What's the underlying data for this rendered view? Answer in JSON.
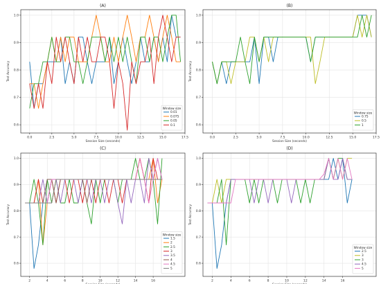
{
  "chart_data": [
    {
      "type": "line",
      "title": "(A)",
      "xlabel": "Session Size (seconds)",
      "ylabel": "Test Accuracy",
      "xlim": [
        -1,
        17.5
      ],
      "ylim": [
        0.57,
        1.02
      ],
      "xticks": [
        0.0,
        2.5,
        5.0,
        7.5,
        10.0,
        12.5,
        15.0,
        17.5
      ],
      "xtick_labels": [
        "0.0",
        "2.5",
        "5.0",
        "7.5",
        "10.0",
        "12.5",
        "15.0",
        "17.5"
      ],
      "yticks": [
        0.6,
        0.7,
        0.8,
        0.9,
        1.0
      ],
      "ytick_labels": [
        "0.6",
        "0.7",
        "0.8",
        "0.9",
        "1.0"
      ],
      "grid": true,
      "legend": {
        "title": "Window size",
        "position": "lower-right"
      },
      "x": [
        0.0,
        0.5,
        1.0,
        1.5,
        2.0,
        2.5,
        3.0,
        3.5,
        4.0,
        4.5,
        5.0,
        5.5,
        6.0,
        6.5,
        7.0,
        7.5,
        8.0,
        8.5,
        9.0,
        9.5,
        10.0,
        10.5,
        11.0,
        11.5,
        12.0,
        12.5,
        13.0,
        13.5,
        14.0,
        14.5,
        15.0,
        15.5,
        16.0,
        16.5,
        17.0
      ],
      "series": [
        {
          "name": "0.01",
          "color": "#1f77b4",
          "values": [
            0.83,
            0.66,
            0.75,
            0.75,
            0.83,
            0.83,
            0.83,
            0.92,
            0.75,
            0.83,
            0.75,
            0.92,
            0.92,
            0.83,
            0.75,
            0.83,
            0.83,
            0.83,
            0.92,
            0.75,
            0.83,
            0.92,
            0.83,
            0.75,
            0.83,
            0.92,
            0.83,
            0.83,
            0.92,
            0.83,
            0.92,
            0.83,
            1.0,
            0.92,
            0.92
          ]
        },
        {
          "name": "0.075",
          "color": "#ff7f0e",
          "values": [
            0.75,
            0.75,
            0.66,
            0.75,
            0.83,
            0.92,
            0.83,
            0.92,
            0.83,
            0.92,
            0.92,
            0.83,
            0.83,
            0.83,
            0.92,
            1.0,
            0.92,
            0.83,
            0.83,
            0.92,
            0.83,
            0.92,
            1.0,
            0.92,
            0.83,
            0.92,
            0.92,
            1.0,
            0.92,
            0.83,
            0.92,
            1.0,
            0.92,
            0.83,
            0.83
          ]
        },
        {
          "name": "0.05",
          "color": "#2ca02c",
          "values": [
            0.66,
            0.75,
            0.75,
            0.83,
            0.83,
            0.92,
            0.83,
            0.83,
            0.92,
            0.92,
            0.83,
            0.83,
            0.75,
            0.83,
            0.92,
            0.92,
            0.92,
            0.83,
            0.92,
            0.83,
            0.92,
            0.83,
            0.92,
            0.83,
            0.75,
            0.92,
            0.92,
            0.83,
            0.92,
            0.92,
            0.83,
            0.92,
            1.0,
            1.0,
            0.83
          ]
        },
        {
          "name": "0.1",
          "color": "#d62728",
          "values": [
            0.75,
            0.66,
            0.75,
            0.66,
            0.83,
            0.75,
            0.92,
            0.83,
            0.92,
            0.83,
            0.75,
            0.92,
            0.83,
            0.92,
            0.83,
            0.83,
            0.92,
            0.92,
            0.83,
            0.66,
            0.83,
            0.75,
            0.58,
            0.83,
            0.75,
            0.83,
            0.83,
            0.92,
            0.75,
            0.92,
            1.0,
            0.92,
            0.83,
            0.92,
            0.92
          ]
        }
      ]
    },
    {
      "type": "line",
      "title": "(B)",
      "xlabel": "Session Size (seconds)",
      "ylabel": "Test Accuracy",
      "xlim": [
        -1,
        17.5
      ],
      "ylim": [
        0.57,
        1.02
      ],
      "xticks": [
        0.0,
        2.5,
        5.0,
        7.5,
        10.0,
        12.5,
        15.0,
        17.5
      ],
      "xtick_labels": [
        "0.0",
        "2.5",
        "5.0",
        "7.5",
        "10.0",
        "12.5",
        "15.0",
        "17.5"
      ],
      "yticks": [
        0.6,
        0.7,
        0.8,
        0.9,
        1.0
      ],
      "ytick_labels": [
        "0.6",
        "0.7",
        "0.8",
        "0.9",
        "1.0"
      ],
      "grid": true,
      "legend": {
        "title": "Window size",
        "position": "lower-right"
      },
      "x": [
        0.0,
        0.5,
        1.0,
        1.5,
        2.0,
        2.5,
        3.0,
        3.5,
        4.0,
        4.5,
        5.0,
        5.5,
        6.0,
        6.5,
        7.0,
        7.5,
        8.0,
        8.5,
        9.0,
        9.5,
        10.0,
        10.5,
        11.0,
        11.5,
        12.0,
        12.5,
        13.0,
        13.5,
        14.0,
        14.5,
        15.0,
        15.5,
        16.0,
        16.5,
        17.0
      ],
      "series": [
        {
          "name": "0.75",
          "color": "#1f77b4",
          "values": [
            0.83,
            0.75,
            0.83,
            0.75,
            0.83,
            0.83,
            0.83,
            0.83,
            0.83,
            0.92,
            0.75,
            0.92,
            0.92,
            0.83,
            0.92,
            0.92,
            0.92,
            0.92,
            0.92,
            0.92,
            0.92,
            0.83,
            0.92,
            0.92,
            0.92,
            0.92,
            0.92,
            0.92,
            0.92,
            0.92,
            0.92,
            1.0,
            1.0,
            1.0,
            0.92
          ]
        },
        {
          "name": "0.5",
          "color": "#bcbd22",
          "values": [
            0.83,
            0.75,
            0.83,
            0.83,
            0.75,
            0.83,
            0.83,
            0.83,
            0.92,
            0.92,
            0.83,
            0.92,
            0.83,
            0.92,
            0.92,
            0.92,
            0.92,
            0.92,
            0.92,
            0.92,
            0.92,
            0.92,
            0.75,
            0.83,
            0.92,
            0.92,
            0.92,
            0.92,
            0.92,
            0.92,
            0.92,
            1.0,
            0.92,
            1.0,
            0.92
          ]
        },
        {
          "name": "1",
          "color": "#2ca02c",
          "values": [
            0.83,
            0.75,
            0.83,
            0.83,
            0.83,
            0.83,
            0.92,
            0.83,
            0.75,
            0.92,
            0.83,
            0.92,
            0.92,
            0.92,
            0.92,
            0.92,
            0.92,
            0.92,
            0.92,
            0.92,
            0.92,
            0.83,
            0.92,
            0.92,
            0.92,
            0.92,
            0.92,
            0.92,
            0.92,
            0.92,
            0.92,
            0.92,
            1.0,
            0.92,
            1.0
          ]
        }
      ]
    },
    {
      "type": "line",
      "title": "(C)",
      "xlabel": "Session Size (seconds)",
      "ylabel": "Test Accuracy",
      "xlim": [
        1,
        19.6
      ],
      "ylim": [
        0.55,
        1.02
      ],
      "xticks": [
        2,
        4,
        6,
        8,
        10,
        12,
        14,
        16
      ],
      "xtick_labels": [
        "2",
        "4",
        "6",
        "8",
        "10",
        "12",
        "14",
        "16"
      ],
      "yticks": [
        0.6,
        0.7,
        0.8,
        0.9,
        1.0
      ],
      "ytick_labels": [
        "0.6",
        "0.7",
        "0.8",
        "0.9",
        "1.0"
      ],
      "grid": true,
      "legend": {
        "title": "Window size",
        "position": "lower-right"
      },
      "x": [
        1.5,
        2.0,
        2.5,
        3.0,
        3.5,
        4.0,
        4.5,
        5.0,
        5.5,
        6.0,
        6.5,
        7.0,
        7.5,
        8.0,
        8.5,
        9.0,
        9.5,
        10.0,
        10.5,
        11.0,
        11.5,
        12.0,
        12.5,
        13.0,
        13.5,
        14.0,
        14.5,
        15.0,
        15.5,
        16.0,
        16.5,
        17.0
      ],
      "series": [
        {
          "name": "1.5",
          "color": "#1f77b4",
          "values": [
            0.83,
            0.83,
            0.58,
            0.67,
            0.83,
            0.92,
            0.92,
            0.92,
            0.92,
            0.92,
            0.92,
            0.92,
            0.92,
            0.92,
            0.92,
            0.92,
            0.92,
            0.92,
            0.92,
            0.92,
            0.92,
            0.92,
            0.92,
            0.92,
            0.92,
            0.92,
            0.92,
            0.92,
            0.92,
            0.92,
            0.92,
            0.92
          ]
        },
        {
          "name": "2",
          "color": "#ff7f0e",
          "values": [
            0.83,
            0.83,
            0.83,
            0.92,
            0.67,
            0.83,
            0.83,
            0.92,
            0.92,
            0.92,
            0.92,
            0.92,
            0.92,
            0.92,
            0.92,
            0.92,
            0.92,
            0.92,
            0.92,
            0.92,
            0.92,
            0.92,
            0.92,
            0.92,
            0.92,
            0.92,
            1.0,
            0.92,
            0.92,
            1.0,
            0.83,
            0.92
          ]
        },
        {
          "name": "2.5",
          "color": "#2ca02c",
          "values": [
            0.83,
            0.83,
            0.92,
            0.83,
            0.67,
            0.92,
            0.83,
            0.92,
            0.83,
            0.83,
            0.92,
            0.83,
            0.83,
            0.92,
            0.83,
            0.75,
            0.92,
            0.83,
            0.92,
            0.92,
            0.92,
            0.83,
            0.92,
            0.92,
            0.92,
            1.0,
            0.92,
            0.92,
            1.0,
            0.92,
            0.75,
            1.0
          ]
        },
        {
          "name": "3",
          "color": "#d62728",
          "values": [
            0.83,
            0.83,
            0.83,
            0.92,
            0.83,
            0.83,
            0.92,
            0.83,
            0.92,
            0.92,
            0.83,
            0.92,
            0.92,
            0.83,
            0.92,
            0.92,
            0.83,
            0.92,
            0.92,
            0.83,
            0.92,
            0.92,
            0.83,
            0.92,
            0.92,
            0.92,
            1.0,
            0.92,
            0.83,
            1.0,
            0.92,
            0.92
          ]
        },
        {
          "name": "3.5",
          "color": "#9467bd",
          "values": [
            0.83,
            0.83,
            0.83,
            0.83,
            0.92,
            0.83,
            0.92,
            0.92,
            0.83,
            0.92,
            0.92,
            0.92,
            0.83,
            0.92,
            0.92,
            0.83,
            0.92,
            0.92,
            0.83,
            0.92,
            0.92,
            0.83,
            0.75,
            0.92,
            0.83,
            0.92,
            0.92,
            0.83,
            1.0,
            0.92,
            1.0,
            0.92
          ]
        },
        {
          "name": "4",
          "color": "#8c564b",
          "values": [
            0.83,
            0.83,
            0.83,
            0.83,
            0.83,
            0.92,
            0.92,
            0.83,
            0.92,
            0.92,
            0.92,
            0.92,
            0.92,
            0.92,
            0.83,
            0.92,
            0.92,
            0.92,
            0.92,
            0.92,
            0.92,
            0.92,
            0.92,
            0.92,
            0.92,
            0.92,
            0.92,
            0.92,
            0.92,
            0.92,
            0.92,
            0.92
          ]
        },
        {
          "name": "4.5",
          "color": "#e377c2",
          "values": [
            0.83,
            0.83,
            0.83,
            0.83,
            0.83,
            0.83,
            0.92,
            0.92,
            0.92,
            0.92,
            0.92,
            0.92,
            0.92,
            0.92,
            0.92,
            0.92,
            0.92,
            0.92,
            0.92,
            0.92,
            0.92,
            0.92,
            0.92,
            0.92,
            0.92,
            0.92,
            1.0,
            0.92,
            0.83,
            0.92,
            1.0,
            0.92
          ]
        },
        {
          "name": "5",
          "color": "#7f7f7f",
          "values": [
            0.83,
            0.83,
            0.83,
            0.83,
            0.83,
            0.83,
            0.83,
            0.92,
            0.92,
            0.92,
            0.92,
            0.92,
            0.92,
            0.92,
            0.92,
            0.92,
            0.92,
            0.92,
            0.92,
            0.92,
            0.92,
            0.92,
            0.92,
            0.92,
            0.92,
            0.92,
            0.92,
            0.92,
            0.92,
            0.92,
            0.92,
            0.92
          ]
        }
      ]
    },
    {
      "type": "line",
      "title": "(D)",
      "xlabel": "Session Size (seconds)",
      "ylabel": "Test Accuracy",
      "xlim": [
        1,
        19.6
      ],
      "ylim": [
        0.55,
        1.02
      ],
      "xticks": [
        2,
        4,
        6,
        8,
        10,
        12,
        14,
        16
      ],
      "xtick_labels": [
        "2",
        "4",
        "6",
        "8",
        "10",
        "12",
        "14",
        "16"
      ],
      "yticks": [
        0.6,
        0.7,
        0.8,
        0.9,
        1.0
      ],
      "ytick_labels": [
        "0.6",
        "0.7",
        "0.8",
        "0.9",
        "1.0"
      ],
      "grid": true,
      "legend": {
        "title": "Window size",
        "position": "lower-right"
      },
      "x": [
        1.5,
        2.0,
        2.5,
        3.0,
        3.5,
        4.0,
        4.5,
        5.0,
        5.5,
        6.0,
        6.5,
        7.0,
        7.5,
        8.0,
        8.5,
        9.0,
        9.5,
        10.0,
        10.5,
        11.0,
        11.5,
        12.0,
        12.5,
        13.0,
        13.5,
        14.0,
        14.5,
        15.0,
        15.5,
        16.0,
        16.5,
        17.0
      ],
      "series": [
        {
          "name": "2.5",
          "color": "#1f77b4",
          "values": [
            0.83,
            0.83,
            0.58,
            0.67,
            0.83,
            0.92,
            0.92,
            0.92,
            0.92,
            0.92,
            0.92,
            0.92,
            0.92,
            0.92,
            0.92,
            0.92,
            0.92,
            0.92,
            0.92,
            0.92,
            0.92,
            0.92,
            0.92,
            0.92,
            0.92,
            0.92,
            0.92,
            1.0,
            0.92,
            1.0,
            0.83,
            0.92
          ]
        },
        {
          "name": "3",
          "color": "#bcbd22",
          "values": [
            0.83,
            0.83,
            0.92,
            0.83,
            0.92,
            0.92,
            0.92,
            0.92,
            0.92,
            0.92,
            0.92,
            0.92,
            0.92,
            0.92,
            0.92,
            0.92,
            0.92,
            0.92,
            0.92,
            0.92,
            0.92,
            0.92,
            0.92,
            0.92,
            0.92,
            0.92,
            1.0,
            0.92,
            1.0,
            0.92,
            1.0,
            1.0
          ]
        },
        {
          "name": "3",
          "color": "#2ca02c",
          "values": [
            0.83,
            0.83,
            0.83,
            0.92,
            0.67,
            0.92,
            0.92,
            0.92,
            0.92,
            0.83,
            0.92,
            0.83,
            0.92,
            0.92,
            0.92,
            0.83,
            0.92,
            0.92,
            0.92,
            0.92,
            0.83,
            0.92,
            0.83,
            0.92,
            0.92,
            0.92,
            1.0,
            0.92,
            1.0,
            1.0,
            0.92,
            0.92
          ]
        },
        {
          "name": "4.5",
          "color": "#9467bd",
          "values": [
            0.83,
            0.83,
            0.83,
            0.83,
            0.83,
            0.92,
            0.92,
            0.92,
            0.92,
            0.92,
            0.83,
            0.92,
            0.92,
            0.83,
            0.92,
            0.92,
            0.92,
            0.92,
            0.83,
            0.92,
            0.92,
            0.92,
            0.92,
            0.92,
            0.92,
            0.92,
            1.0,
            0.92,
            0.92,
            1.0,
            0.92,
            0.92
          ]
        },
        {
          "name": "5",
          "color": "#e377c2",
          "values": [
            0.83,
            0.83,
            0.83,
            0.83,
            0.83,
            0.83,
            0.92,
            0.92,
            0.92,
            0.92,
            0.92,
            0.92,
            0.92,
            0.92,
            0.92,
            0.92,
            0.92,
            0.92,
            0.92,
            0.92,
            0.92,
            0.92,
            0.92,
            0.92,
            0.92,
            0.94,
            1.0,
            0.92,
            1.0,
            0.92,
            1.0,
            0.92
          ]
        }
      ]
    }
  ]
}
